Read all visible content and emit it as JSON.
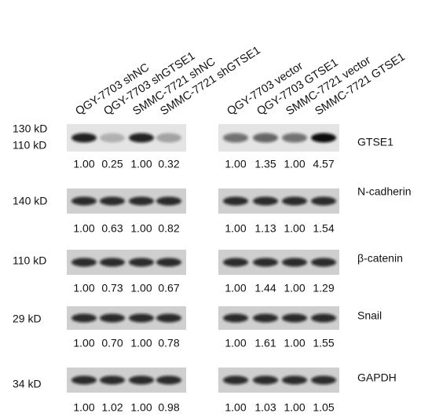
{
  "lanes": [
    "QGY-7703 shNC",
    "QGY-7703 shGTSE1",
    "SMMC-7721 shNC",
    "SMMC-7721 shGTSE1",
    "QGY-7703 vector",
    "QGY-7703 GTSE1",
    "SMMC-7721 vector",
    "SMMC-7721 GTSE1"
  ],
  "rows": [
    {
      "markers": [
        "130 kD",
        "110 kD"
      ],
      "protein": "GTSE1",
      "values": [
        "1.00",
        "0.25",
        "1.00",
        "0.32",
        "1.00",
        "1.35",
        "1.00",
        "4.57"
      ]
    },
    {
      "markers": [
        "140 kD"
      ],
      "protein": "N-cadherin",
      "values": [
        "1.00",
        "0.63",
        "1.00",
        "0.82",
        "1.00",
        "1.13",
        "1.00",
        "1.54"
      ]
    },
    {
      "markers": [
        "110 kD"
      ],
      "protein": "β-catenin",
      "values": [
        "1.00",
        "0.73",
        "1.00",
        "0.67",
        "1.00",
        "1.44",
        "1.00",
        "1.29"
      ]
    },
    {
      "markers": [
        "29 kD"
      ],
      "protein": "Snail",
      "values": [
        "1.00",
        "0.70",
        "1.00",
        "0.78",
        "1.00",
        "1.61",
        "1.00",
        "1.55"
      ]
    },
    {
      "markers": [
        "34 kD"
      ],
      "protein": "GAPDH",
      "values": [
        "1.00",
        "1.02",
        "1.00",
        "0.98",
        "1.00",
        "1.03",
        "1.00",
        "1.05"
      ]
    }
  ]
}
